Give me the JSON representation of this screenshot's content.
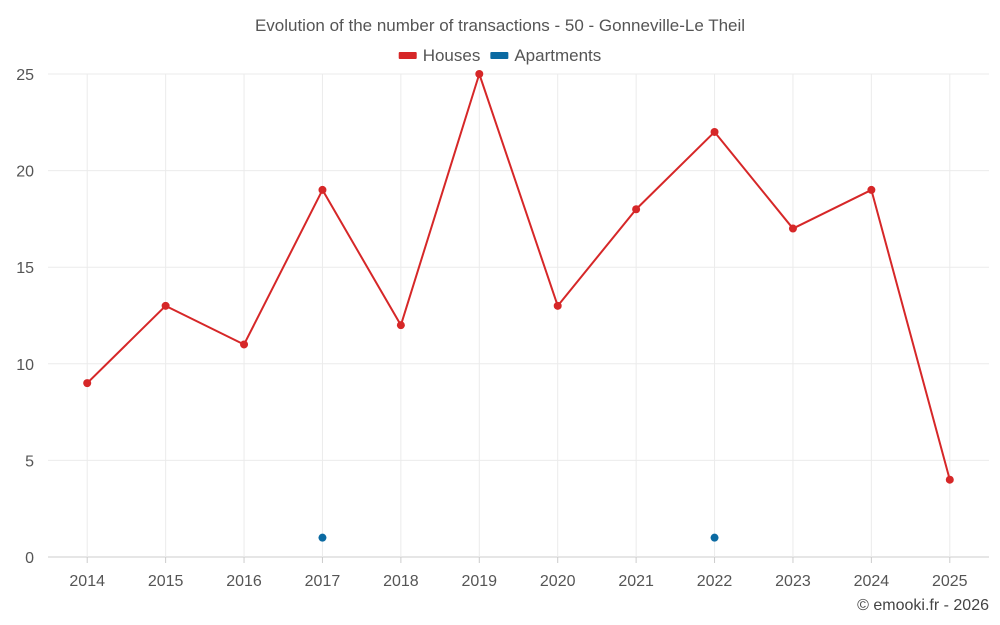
{
  "chart_data": {
    "type": "line",
    "title": "Evolution of the number of transactions - 50 - Gonneville-Le Theil",
    "categories": [
      "2014",
      "2015",
      "2016",
      "2017",
      "2018",
      "2019",
      "2020",
      "2021",
      "2022",
      "2023",
      "2024",
      "2025"
    ],
    "ylim": [
      0,
      25
    ],
    "yticks": [
      0,
      5,
      10,
      15,
      20,
      25
    ],
    "grid": true,
    "legend_position": "top-center",
    "series": [
      {
        "name": "Houses",
        "color": "#d62728",
        "values": [
          9,
          13,
          11,
          19,
          12,
          25,
          13,
          18,
          22,
          17,
          19,
          4
        ]
      },
      {
        "name": "Apartments",
        "color": "#0b6aa2",
        "values": [
          null,
          null,
          null,
          1,
          null,
          null,
          null,
          null,
          1,
          null,
          null,
          null
        ]
      }
    ]
  },
  "credit": "© emooki.fr - 2026"
}
